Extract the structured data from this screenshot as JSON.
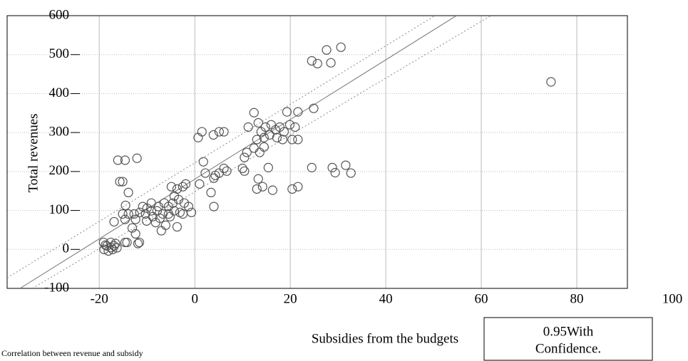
{
  "chart_data": {
    "type": "scatter",
    "title": "Correlation between revenue and subsidy",
    "x_label": "Subsidies from the budgets",
    "y_label": "Total revenues",
    "legend_box": [
      "0.95With",
      "Confidence."
    ],
    "xlim": [
      -39.3,
      90.6
    ],
    "ylim": [
      -100,
      600
    ],
    "xticks": [
      -20,
      0,
      20,
      40,
      60,
      80,
      100
    ],
    "yticks": [
      -100,
      0,
      100,
      200,
      300,
      400,
      500,
      600
    ],
    "grid": true,
    "series": [
      {
        "color": "#555555",
        "x": [
          24.5,
          25.7,
          27.6,
          28.5,
          30.6,
          74.6,
          12.4,
          21.6,
          19.3,
          24.9,
          1.5,
          0.7,
          3.9,
          5.1,
          6.1,
          1.8,
          11.2,
          13.3,
          13.9,
          14.8,
          16,
          16.9,
          17.8,
          18.7,
          19.9,
          21,
          13,
          14.5,
          15.7,
          17.2,
          18.4,
          20.4,
          21.6,
          12.4,
          13.6,
          10.9,
          14.5,
          10.4,
          10,
          10.4,
          15.4,
          13.3,
          13,
          14.2,
          16.3,
          20.4,
          21.6,
          24.5,
          32.7,
          31.6,
          28.8,
          29.4,
          6.7,
          5.1,
          4.3,
          4,
          2.2,
          6.1,
          3.4,
          4,
          1,
          -16.1,
          -14.6,
          -12.1,
          -15.1,
          -15.7,
          -13.9,
          -14.5,
          -16.9,
          -15.1,
          -13.9,
          -12.7,
          -11.5,
          -10.3,
          -9.1,
          -7.9,
          -6.7,
          -5.5,
          -4.3,
          -3.1,
          -14.6,
          -12.4,
          -10.1,
          -8.2,
          -6.1,
          -7,
          -3.7,
          -13.1,
          -12.4,
          -11.6,
          -11.9,
          -14.2,
          -4.9,
          -3.7,
          -2.5,
          -1.9,
          -4.3,
          -3.4,
          -2.2,
          -1.3,
          -0.7,
          -4.6,
          -5.5,
          -6.4,
          -7.6,
          -9.1,
          -10,
          -10.9,
          -8.8,
          -7.3,
          -5.2,
          -2.5,
          -19.1,
          -18.4,
          -17.6,
          -16.9,
          -19,
          -18.1,
          -17.2,
          -16.3,
          -18.7,
          -16.6,
          -17.5,
          -14.6
        ],
        "y": [
          484,
          477,
          512,
          479,
          519,
          430,
          351,
          353,
          353,
          362,
          302,
          287,
          294,
          302,
          302,
          225,
          314,
          325,
          302,
          314,
          320,
          307,
          314,
          302,
          320,
          314,
          282,
          287,
          294,
          287,
          282,
          282,
          282,
          260,
          249,
          249,
          263,
          236,
          208,
          201,
          210,
          181,
          155,
          161,
          152,
          155,
          161,
          210,
          196,
          216,
          210,
          197,
          201,
          196,
          190,
          183,
          196,
          208,
          146,
          110,
          168,
          229,
          229,
          234,
          174,
          174,
          146,
          113,
          71,
          91,
          91,
          91,
          95,
          91,
          99,
          99,
          91,
          91,
          99,
          95,
          77,
          77,
          73,
          69,
          62,
          48,
          58,
          55,
          40,
          18,
          15,
          18,
          161,
          155,
          161,
          168,
          137,
          128,
          119,
          110,
          95,
          119,
          110,
          119,
          110,
          119,
          106,
          110,
          84,
          80,
          84,
          91,
          18,
          9,
          18,
          9,
          0,
          -4,
          0,
          4,
          11,
          15,
          5,
          18
        ]
      }
    ],
    "fit": {
      "color": "#777777",
      "x": [
        -36.6,
        54.8
      ],
      "y": [
        -100,
        600
      ]
    },
    "confidence": [
      {
        "color": "#888888",
        "x": [
          -39.3,
          50.3
        ],
        "y": [
          -73,
          600
        ]
      },
      {
        "color": "#888888",
        "x": [
          -34,
          62
        ],
        "y": [
          -100,
          600
        ]
      }
    ]
  }
}
